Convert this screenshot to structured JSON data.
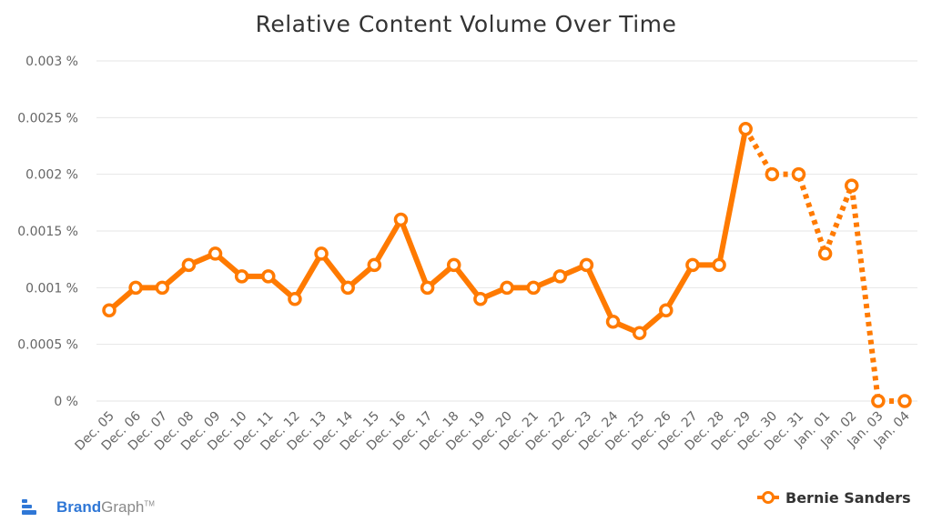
{
  "brand": {
    "name_bold": "Brand",
    "name_light": "Graph",
    "tm": "TM"
  },
  "colors": {
    "series": "#ff7a00",
    "brand": "#2f77d6"
  },
  "chart_data": {
    "type": "line",
    "title": "Relative Content Volume Over Time",
    "xlabel": "",
    "ylabel": "",
    "ylim": [
      0,
      0.003
    ],
    "y_ticks": [
      "0 %",
      "0.0005 %",
      "0.001 %",
      "0.0015 %",
      "0.002 %",
      "0.0025 %",
      "0.003 %"
    ],
    "y_tick_values": [
      0,
      0.0005,
      0.001,
      0.0015,
      0.002,
      0.0025,
      0.003
    ],
    "grid": true,
    "legend": "bottom-right",
    "categories": [
      "Dec. 05",
      "Dec. 06",
      "Dec. 07",
      "Dec. 08",
      "Dec. 09",
      "Dec. 10",
      "Dec. 11",
      "Dec. 12",
      "Dec. 13",
      "Dec. 14",
      "Dec. 15",
      "Dec. 16",
      "Dec. 17",
      "Dec. 18",
      "Dec. 19",
      "Dec. 20",
      "Dec. 21",
      "Dec. 22",
      "Dec. 23",
      "Dec. 24",
      "Dec. 25",
      "Dec. 26",
      "Dec. 27",
      "Dec. 28",
      "Dec. 29",
      "Dec. 30",
      "Dec. 31",
      "Jan. 01",
      "Jan. 02",
      "Jan. 03",
      "Jan. 04"
    ],
    "series": [
      {
        "name": "Bernie Sanders",
        "color": "#ff7a00",
        "dashed_from_index": 24,
        "values": [
          0.0008,
          0.001,
          0.001,
          0.0012,
          0.0013,
          0.0011,
          0.0011,
          0.0009,
          0.0013,
          0.001,
          0.0012,
          0.0016,
          0.001,
          0.0012,
          0.0009,
          0.001,
          0.001,
          0.0011,
          0.0012,
          0.0007,
          0.0006,
          0.0008,
          0.0012,
          0.0012,
          0.0024,
          0.002,
          0.002,
          0.0013,
          0.0019,
          0.0,
          0.0
        ]
      }
    ]
  }
}
